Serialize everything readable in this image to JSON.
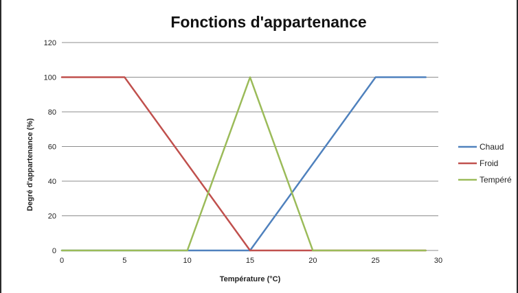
{
  "chart_data": {
    "type": "line",
    "title": "Fonctions d'appartenance",
    "xlabel": "Température (°C)",
    "ylabel": "Degré d'appartenance (%)",
    "xlim": [
      0,
      30
    ],
    "ylim": [
      0,
      120
    ],
    "xticks": [
      0,
      5,
      10,
      15,
      20,
      25,
      30
    ],
    "yticks": [
      0,
      20,
      40,
      60,
      80,
      100,
      120
    ],
    "grid": "horizontal",
    "legend_position": "right",
    "series": [
      {
        "name": "Chaud",
        "color": "#4f81bd",
        "points": [
          [
            0,
            0
          ],
          [
            15,
            0
          ],
          [
            25,
            100
          ],
          [
            29,
            100
          ]
        ]
      },
      {
        "name": "Froid",
        "color": "#c0504d",
        "points": [
          [
            0,
            100
          ],
          [
            5,
            100
          ],
          [
            15,
            0
          ],
          [
            29,
            0
          ]
        ]
      },
      {
        "name": "Tempéré",
        "color": "#9bbb59",
        "points": [
          [
            0,
            0
          ],
          [
            10,
            0
          ],
          [
            15,
            100
          ],
          [
            20,
            0
          ],
          [
            29,
            0
          ]
        ]
      }
    ]
  }
}
